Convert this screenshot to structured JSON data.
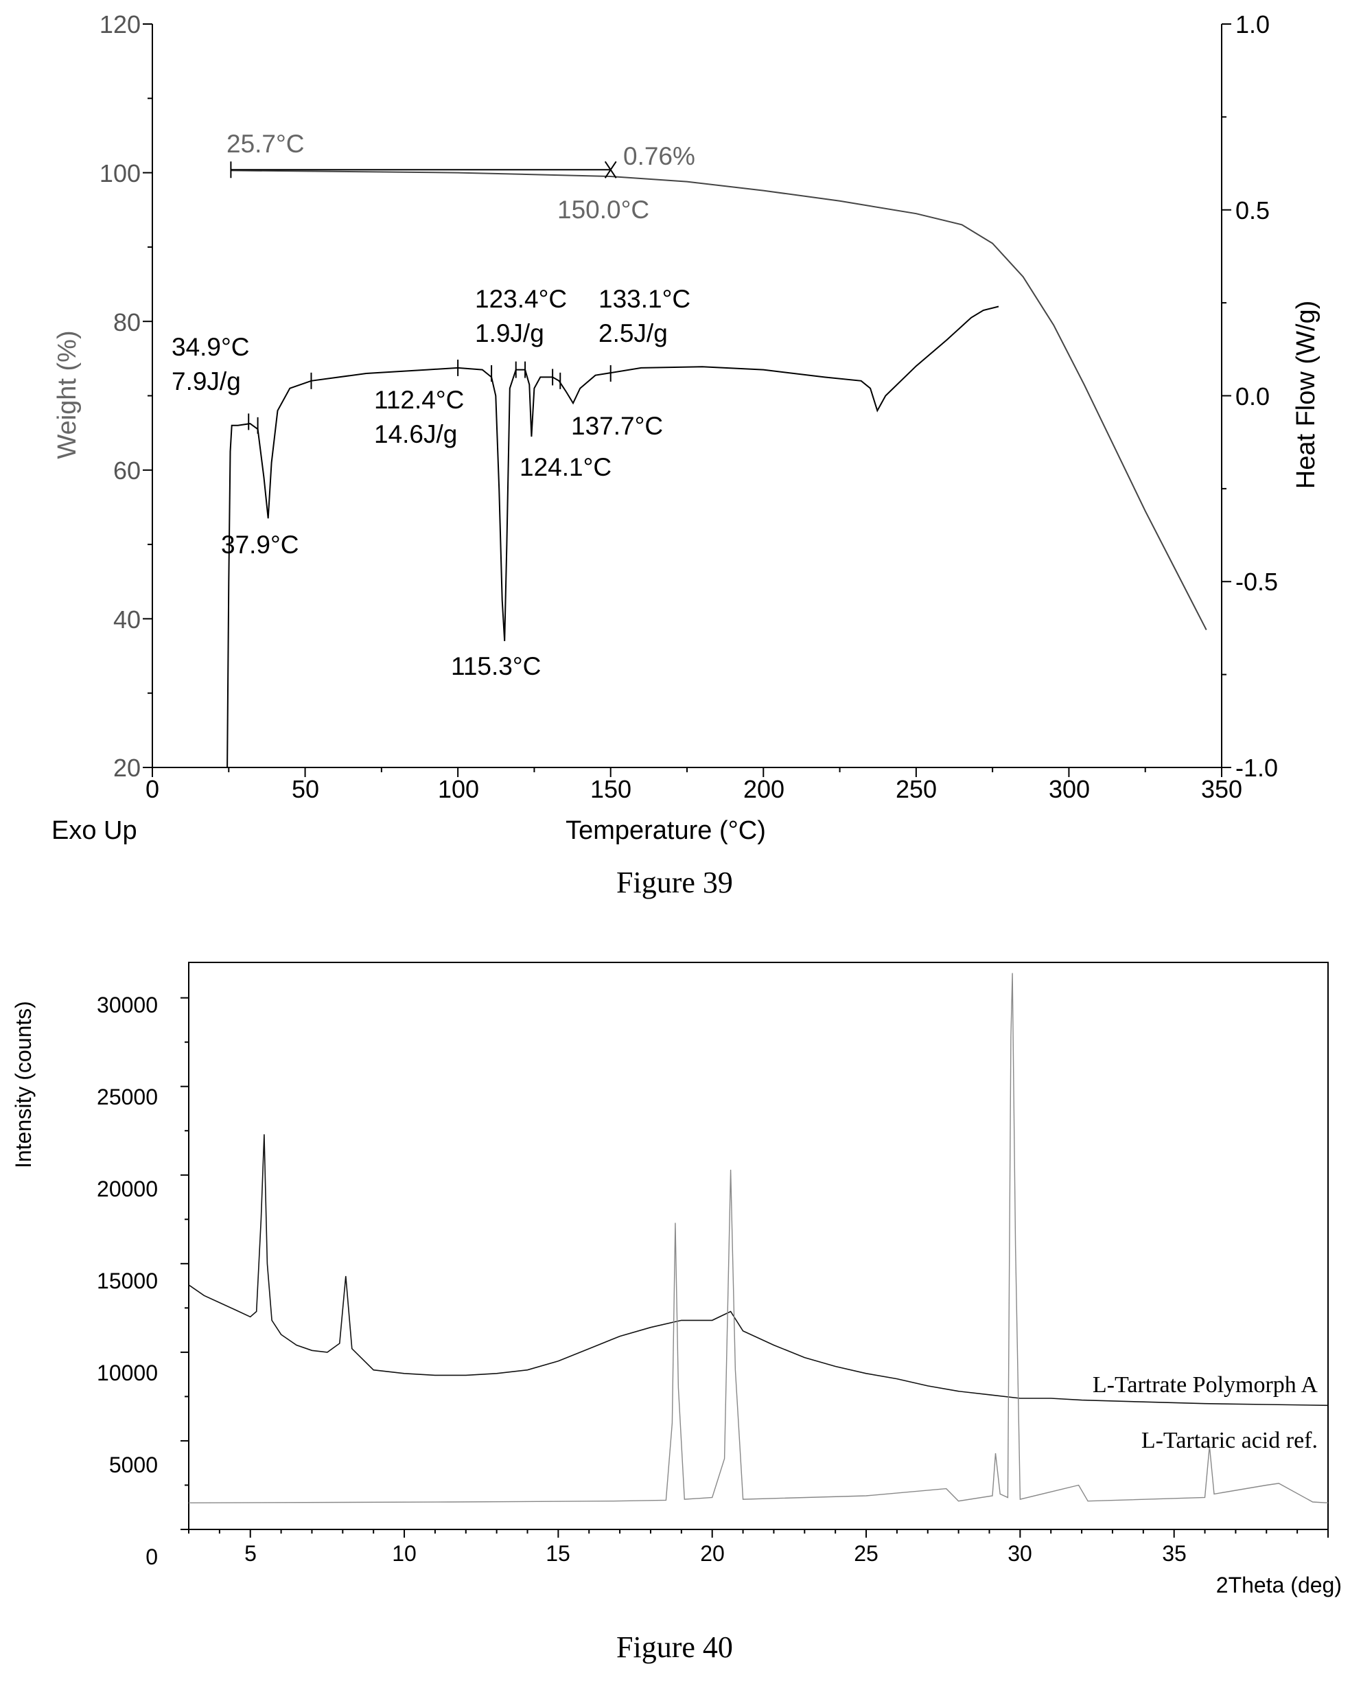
{
  "chart_data": [
    {
      "type": "line",
      "figure_caption": "Figure 39",
      "bottom_left_label": "Exo Up",
      "xlabel": "Temperature (°C)",
      "ylabel_left": "Weight (%)",
      "ylabel_right": "Heat Flow (W/g)",
      "xlim": [
        0,
        350
      ],
      "ylim_left": [
        20,
        120
      ],
      "ylim_right": [
        -1.0,
        1.0
      ],
      "x_ticks": [
        "0",
        "50",
        "100",
        "150",
        "200",
        "250",
        "300",
        "350"
      ],
      "y_left_ticks": [
        "20",
        "40",
        "60",
        "80",
        "100",
        "120"
      ],
      "y_right_ticks": [
        "-1.0",
        "-0.5",
        "0.0",
        "0.5",
        "1.0"
      ],
      "series": [
        {
          "axis": "left",
          "color": "#444444",
          "points": [
            [
              25.7,
              100.3
            ],
            [
              50,
              100.2
            ],
            [
              100,
              100.0
            ],
            [
              150,
              99.5
            ],
            [
              175,
              98.8
            ],
            [
              200,
              97.6
            ],
            [
              225,
              96.2
            ],
            [
              250,
              94.5
            ],
            [
              265,
              93.0
            ],
            [
              275,
              90.5
            ],
            [
              285,
              86.0
            ],
            [
              295,
              79.5
            ],
            [
              305,
              71.5
            ],
            [
              315,
              63.0
            ],
            [
              325,
              54.5
            ],
            [
              335,
              46.5
            ],
            [
              345,
              38.5
            ]
          ]
        },
        {
          "axis": "right",
          "color": "#000000",
          "points": [
            [
              24.5,
              -1.0
            ],
            [
              25.0,
              -0.5
            ],
            [
              25.5,
              -0.15
            ],
            [
              26.0,
              -0.08
            ],
            [
              28,
              -0.08
            ],
            [
              32,
              -0.075
            ],
            [
              34.5,
              -0.09
            ],
            [
              36.5,
              -0.22
            ],
            [
              37.9,
              -0.33
            ],
            [
              39.0,
              -0.18
            ],
            [
              41,
              -0.04
            ],
            [
              45,
              0.02
            ],
            [
              52,
              0.04
            ],
            [
              70,
              0.06
            ],
            [
              90,
              0.07
            ],
            [
              100,
              0.075
            ],
            [
              108,
              0.07
            ],
            [
              111,
              0.05
            ],
            [
              112.4,
              0.0
            ],
            [
              113.5,
              -0.25
            ],
            [
              114.5,
              -0.55
            ],
            [
              115.3,
              -0.66
            ],
            [
              116.0,
              -0.4
            ],
            [
              117,
              0.02
            ],
            [
              119,
              0.07
            ],
            [
              122,
              0.07
            ],
            [
              123.4,
              0.03
            ],
            [
              124.1,
              -0.11
            ],
            [
              125,
              0.02
            ],
            [
              127,
              0.05
            ],
            [
              131,
              0.05
            ],
            [
              133.1,
              0.04
            ],
            [
              135.5,
              0.01
            ],
            [
              137.7,
              -0.02
            ],
            [
              140,
              0.02
            ],
            [
              145,
              0.055
            ],
            [
              160,
              0.075
            ],
            [
              180,
              0.078
            ],
            [
              200,
              0.07
            ],
            [
              220,
              0.05
            ],
            [
              232,
              0.04
            ],
            [
              235,
              0.02
            ],
            [
              237.3,
              -0.04
            ],
            [
              240,
              0.0
            ],
            [
              250,
              0.08
            ],
            [
              260,
              0.15
            ],
            [
              268,
              0.21
            ],
            [
              272,
              0.23
            ],
            [
              277,
              0.24
            ]
          ]
        }
      ],
      "annotations": {
        "tga_start": "25.7°C",
        "tga_loss": "0.76%",
        "tga_end": "150.0°C",
        "p1": [
          "34.9°C",
          "7.9J/g"
        ],
        "p1_peak": "37.9°C",
        "p2": [
          "112.4°C",
          "14.6J/g"
        ],
        "p2_peak": "115.3°C",
        "p3": [
          "123.4°C",
          "1.9J/g"
        ],
        "p3_peak": "124.1°C",
        "p4": [
          "133.1°C",
          "2.5J/g"
        ],
        "p4_peak": "137.7°C"
      }
    },
    {
      "type": "line",
      "figure_caption": "Figure 40",
      "xlabel": "2Theta (deg)",
      "ylabel": "Intensity (counts)",
      "xlim": [
        3,
        40
      ],
      "ylim": [
        0,
        32000
      ],
      "x_ticks": [
        "5",
        "10",
        "15",
        "20",
        "25",
        "30",
        "35"
      ],
      "y_ticks": [
        "0",
        "5000",
        "10000",
        "15000",
        "20000",
        "25000",
        "30000"
      ],
      "series": [
        {
          "name": "L-Tartrate Polymorph A",
          "color": "#111111",
          "points": [
            [
              3.0,
              13800
            ],
            [
              3.5,
              13200
            ],
            [
              4.0,
              12800
            ],
            [
              4.5,
              12400
            ],
            [
              5.0,
              12000
            ],
            [
              5.2,
              12300
            ],
            [
              5.35,
              17500
            ],
            [
              5.45,
              22300
            ],
            [
              5.55,
              15000
            ],
            [
              5.7,
              11800
            ],
            [
              6.0,
              11000
            ],
            [
              6.5,
              10400
            ],
            [
              7.0,
              10100
            ],
            [
              7.5,
              10000
            ],
            [
              7.9,
              10500
            ],
            [
              8.1,
              14300
            ],
            [
              8.3,
              10200
            ],
            [
              9.0,
              9000
            ],
            [
              10,
              8800
            ],
            [
              11,
              8700
            ],
            [
              12,
              8700
            ],
            [
              13,
              8800
            ],
            [
              14,
              9000
            ],
            [
              15,
              9500
            ],
            [
              16,
              10200
            ],
            [
              17,
              10900
            ],
            [
              18,
              11400
            ],
            [
              19,
              11800
            ],
            [
              20,
              11800
            ],
            [
              20.6,
              12300
            ],
            [
              21,
              11200
            ],
            [
              22,
              10400
            ],
            [
              23,
              9700
            ],
            [
              24,
              9200
            ],
            [
              25,
              8800
            ],
            [
              26,
              8500
            ],
            [
              27,
              8100
            ],
            [
              28,
              7800
            ],
            [
              29,
              7600
            ],
            [
              30,
              7400
            ],
            [
              31,
              7400
            ],
            [
              32,
              7300
            ],
            [
              34,
              7200
            ],
            [
              36,
              7100
            ],
            [
              38,
              7050
            ],
            [
              40,
              7000
            ]
          ]
        },
        {
          "name": "L-Tartaric acid ref.",
          "color": "#888888",
          "points": [
            [
              3.0,
              1500
            ],
            [
              11.5,
              1550
            ],
            [
              16.8,
              1600
            ],
            [
              18.5,
              1650
            ],
            [
              18.7,
              6000
            ],
            [
              18.8,
              17300
            ],
            [
              18.9,
              8000
            ],
            [
              19.1,
              1700
            ],
            [
              20.0,
              1800
            ],
            [
              20.4,
              4000
            ],
            [
              20.6,
              20300
            ],
            [
              20.75,
              9000
            ],
            [
              21.0,
              1700
            ],
            [
              25.0,
              1900
            ],
            [
              27.6,
              2300
            ],
            [
              28.0,
              1600
            ],
            [
              29.1,
              1900
            ],
            [
              29.2,
              4300
            ],
            [
              29.35,
              2000
            ],
            [
              29.6,
              1800
            ],
            [
              29.7,
              27800
            ],
            [
              29.75,
              31400
            ],
            [
              29.85,
              16000
            ],
            [
              30.0,
              1700
            ],
            [
              31.9,
              2500
            ],
            [
              32.2,
              1600
            ],
            [
              36.0,
              1800
            ],
            [
              36.15,
              4700
            ],
            [
              36.3,
              2000
            ],
            [
              38.0,
              2500
            ],
            [
              38.4,
              2600
            ],
            [
              39.5,
              1550
            ],
            [
              40.0,
              1500
            ]
          ]
        }
      ]
    }
  ]
}
